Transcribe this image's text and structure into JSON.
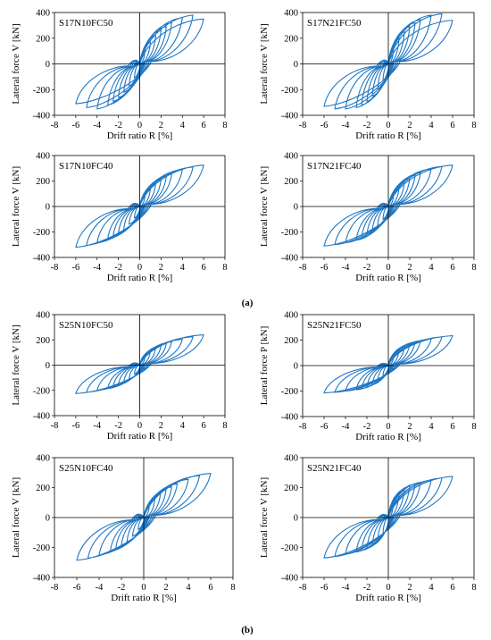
{
  "captions": [
    "(a)",
    "(b)"
  ],
  "chart_data": [
    {
      "type": "line",
      "title": "S17N10FC50",
      "xlabel": "Drift ratio R [%]",
      "ylabel": "Lateral force V [kN]",
      "xlim": [
        -8,
        8
      ],
      "ylim": [
        -400,
        400
      ],
      "xticks": [
        -8,
        -6,
        -4,
        -2,
        0,
        2,
        4,
        6,
        8
      ],
      "yticks": [
        -400,
        -200,
        0,
        200,
        400
      ],
      "color": "#1f77c4",
      "grid": false,
      "peaks": [
        [
          0.5,
          110
        ],
        [
          1,
          170
        ],
        [
          1.5,
          220
        ],
        [
          2,
          260
        ],
        [
          2.5,
          290
        ],
        [
          3,
          320
        ],
        [
          4,
          360
        ],
        [
          5,
          380
        ],
        [
          6,
          350
        ]
      ],
      "negpeaks": [
        [
          -0.5,
          -110
        ],
        [
          -1,
          -170
        ],
        [
          -1.5,
          -220
        ],
        [
          -2,
          -260
        ],
        [
          -2.5,
          -290
        ],
        [
          -3,
          -320
        ],
        [
          -4,
          -350
        ],
        [
          -5,
          -340
        ],
        [
          -6,
          -310
        ]
      ]
    },
    {
      "type": "line",
      "title": "S17N21FC50",
      "xlabel": "Drift ratio R [%]",
      "ylabel": "Lateral force V [kN]",
      "xlim": [
        -8,
        8
      ],
      "ylim": [
        -400,
        400
      ],
      "xticks": [
        -8,
        -6,
        -4,
        -2,
        0,
        2,
        4,
        6,
        8
      ],
      "yticks": [
        -400,
        -200,
        0,
        200,
        400
      ],
      "color": "#1f77c4",
      "grid": false,
      "peaks": [
        [
          0.5,
          130
        ],
        [
          1,
          200
        ],
        [
          1.5,
          250
        ],
        [
          2,
          290
        ],
        [
          2.5,
          320
        ],
        [
          3,
          345
        ],
        [
          4,
          380
        ],
        [
          5,
          390
        ],
        [
          6,
          340
        ]
      ],
      "negpeaks": [
        [
          -0.5,
          -130
        ],
        [
          -1,
          -200
        ],
        [
          -1.5,
          -250
        ],
        [
          -2,
          -290
        ],
        [
          -2.5,
          -320
        ],
        [
          -3,
          -340
        ],
        [
          -4,
          -350
        ],
        [
          -5,
          -350
        ],
        [
          -6,
          -330
        ]
      ]
    },
    {
      "type": "line",
      "title": "S17N10FC40",
      "xlabel": "Drift ratio R [%]",
      "ylabel": "Lateral force V [kN]",
      "xlim": [
        -8,
        8
      ],
      "ylim": [
        -400,
        400
      ],
      "xticks": [
        -8,
        -6,
        -4,
        -2,
        0,
        2,
        4,
        6,
        8
      ],
      "yticks": [
        -400,
        -200,
        0,
        200,
        400
      ],
      "color": "#1f77c4",
      "grid": false,
      "peaks": [
        [
          0.5,
          90
        ],
        [
          1,
          140
        ],
        [
          1.5,
          180
        ],
        [
          2,
          210
        ],
        [
          2.5,
          235
        ],
        [
          3,
          255
        ],
        [
          4,
          290
        ],
        [
          5,
          310
        ],
        [
          6,
          325
        ]
      ],
      "negpeaks": [
        [
          -0.5,
          -90
        ],
        [
          -1,
          -140
        ],
        [
          -1.5,
          -180
        ],
        [
          -2,
          -210
        ],
        [
          -2.5,
          -235
        ],
        [
          -3,
          -255
        ],
        [
          -4,
          -285
        ],
        [
          -5,
          -305
        ],
        [
          -6,
          -320
        ]
      ]
    },
    {
      "type": "line",
      "title": "S17N21FC40",
      "xlabel": "Drift ratio R [%]",
      "ylabel": "Lateral force V [kN]",
      "xlim": [
        -8,
        8
      ],
      "ylim": [
        -400,
        400
      ],
      "xticks": [
        -8,
        -6,
        -4,
        -2,
        0,
        2,
        4,
        6,
        8
      ],
      "yticks": [
        -400,
        -200,
        0,
        200,
        400
      ],
      "color": "#1f77c4",
      "grid": false,
      "peaks": [
        [
          0.5,
          100
        ],
        [
          1,
          150
        ],
        [
          1.5,
          190
        ],
        [
          2,
          220
        ],
        [
          2.5,
          245
        ],
        [
          3,
          265
        ],
        [
          4,
          295
        ],
        [
          5,
          315
        ],
        [
          6,
          325
        ]
      ],
      "negpeaks": [
        [
          -0.5,
          -100
        ],
        [
          -1,
          -150
        ],
        [
          -1.5,
          -190
        ],
        [
          -2,
          -220
        ],
        [
          -2.5,
          -245
        ],
        [
          -3,
          -265
        ],
        [
          -4,
          -285
        ],
        [
          -5,
          -300
        ],
        [
          -6,
          -310
        ]
      ]
    },
    {
      "type": "line",
      "title": "S25N10FC50",
      "xlabel": "Drift ratio R [%]",
      "ylabel": "Lateral force V [kN]",
      "xlim": [
        -8,
        8
      ],
      "ylim": [
        -400,
        400
      ],
      "xticks": [
        -8,
        -6,
        -4,
        -2,
        0,
        2,
        4,
        6,
        8
      ],
      "yticks": [
        -400,
        -200,
        0,
        200,
        400
      ],
      "color": "#1f77c4",
      "grid": false,
      "peaks": [
        [
          0.5,
          70
        ],
        [
          1,
          110
        ],
        [
          1.5,
          135
        ],
        [
          2,
          155
        ],
        [
          2.5,
          170
        ],
        [
          3,
          185
        ],
        [
          4,
          205
        ],
        [
          5,
          225
        ],
        [
          6,
          240
        ]
      ],
      "negpeaks": [
        [
          -0.5,
          -70
        ],
        [
          -1,
          -110
        ],
        [
          -1.5,
          -135
        ],
        [
          -2,
          -155
        ],
        [
          -2.5,
          -170
        ],
        [
          -3,
          -185
        ],
        [
          -4,
          -200
        ],
        [
          -5,
          -215
        ],
        [
          -6,
          -225
        ]
      ]
    },
    {
      "type": "line",
      "title": "S25N21FC50",
      "xlabel": "Drift ratio R [%]",
      "ylabel": "Lateral force P [kN]",
      "xlim": [
        -8,
        8
      ],
      "ylim": [
        -400,
        400
      ],
      "xticks": [
        -8,
        -6,
        -4,
        -2,
        0,
        2,
        4,
        6,
        8
      ],
      "yticks": [
        -400,
        -200,
        0,
        200,
        400
      ],
      "color": "#1f77c4",
      "grid": false,
      "peaks": [
        [
          0.5,
          80
        ],
        [
          1,
          120
        ],
        [
          1.5,
          150
        ],
        [
          2,
          170
        ],
        [
          2.5,
          185
        ],
        [
          3,
          195
        ],
        [
          4,
          210
        ],
        [
          5,
          225
        ],
        [
          6,
          235
        ]
      ],
      "negpeaks": [
        [
          -0.5,
          -80
        ],
        [
          -1,
          -120
        ],
        [
          -1.5,
          -150
        ],
        [
          -2,
          -165
        ],
        [
          -2.5,
          -180
        ],
        [
          -3,
          -190
        ],
        [
          -4,
          -200
        ],
        [
          -5,
          -210
        ],
        [
          -6,
          -215
        ]
      ]
    },
    {
      "type": "line",
      "title": "S25N10FC40",
      "xlabel": "Drift ratio R [%]",
      "ylabel": "Lateral force V [kN]",
      "xlim": [
        -8,
        8
      ],
      "ylim": [
        -400,
        400
      ],
      "xticks": [
        -8,
        -6,
        -4,
        -2,
        0,
        2,
        4,
        6,
        8
      ],
      "yticks": [
        -400,
        -200,
        0,
        200,
        400
      ],
      "color": "#1f77c4",
      "grid": false,
      "peaks": [
        [
          0.5,
          80
        ],
        [
          1,
          125
        ],
        [
          1.5,
          160
        ],
        [
          2,
          185
        ],
        [
          2.5,
          205
        ],
        [
          3,
          225
        ],
        [
          4,
          255
        ],
        [
          5,
          280
        ],
        [
          6,
          295
        ]
      ],
      "negpeaks": [
        [
          -0.5,
          -80
        ],
        [
          -1,
          -125
        ],
        [
          -1.5,
          -160
        ],
        [
          -2,
          -185
        ],
        [
          -2.5,
          -205
        ],
        [
          -3,
          -225
        ],
        [
          -4,
          -250
        ],
        [
          -5,
          -270
        ],
        [
          -6,
          -285
        ]
      ]
    },
    {
      "type": "line",
      "title": "S25N21FC40",
      "xlabel": "Drift ratio R [%]",
      "ylabel": "Lateral force V [kN]",
      "xlim": [
        -8,
        8
      ],
      "ylim": [
        -400,
        400
      ],
      "xticks": [
        -8,
        -6,
        -4,
        -2,
        0,
        2,
        4,
        6,
        8
      ],
      "yticks": [
        -400,
        -200,
        0,
        200,
        400
      ],
      "color": "#1f77c4",
      "grid": false,
      "peaks": [
        [
          0.5,
          110
        ],
        [
          1,
          160
        ],
        [
          1.5,
          190
        ],
        [
          2,
          210
        ],
        [
          2.5,
          225
        ],
        [
          3,
          235
        ],
        [
          4,
          250
        ],
        [
          5,
          265
        ],
        [
          6,
          275
        ]
      ],
      "negpeaks": [
        [
          -0.5,
          -110
        ],
        [
          -1,
          -155
        ],
        [
          -1.5,
          -185
        ],
        [
          -2,
          -205
        ],
        [
          -2.5,
          -220
        ],
        [
          -3,
          -230
        ],
        [
          -4,
          -245
        ],
        [
          -5,
          -260
        ],
        [
          -6,
          -270
        ]
      ]
    }
  ]
}
